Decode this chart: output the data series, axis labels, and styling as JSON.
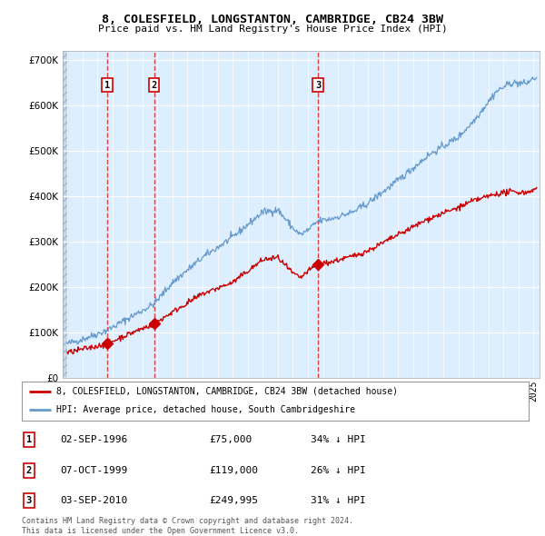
{
  "title_line1": "8, COLESFIELD, LONGSTANTON, CAMBRIDGE, CB24 3BW",
  "title_line2": "Price paid vs. HM Land Registry's House Price Index (HPI)",
  "background_color": "#ffffff",
  "plot_bg_color": "#ddeeff",
  "grid_color": "#ffffff",
  "red_line_color": "#cc0000",
  "blue_line_color": "#6699cc",
  "purchase_dates": [
    1996.67,
    1999.77,
    2010.67
  ],
  "purchase_prices": [
    75000,
    119000,
    249995
  ],
  "purchase_labels": [
    "1",
    "2",
    "3"
  ],
  "legend_red": "8, COLESFIELD, LONGSTANTON, CAMBRIDGE, CB24 3BW (detached house)",
  "legend_blue": "HPI: Average price, detached house, South Cambridgeshire",
  "table_data": [
    [
      "1",
      "02-SEP-1996",
      "£75,000",
      "34% ↓ HPI"
    ],
    [
      "2",
      "07-OCT-1999",
      "£119,000",
      "26% ↓ HPI"
    ],
    [
      "3",
      "03-SEP-2010",
      "£249,995",
      "31% ↓ HPI"
    ]
  ],
  "footer_text": "Contains HM Land Registry data © Crown copyright and database right 2024.\nThis data is licensed under the Open Government Licence v3.0.",
  "ylim": [
    0,
    720000
  ],
  "xlim_start": 1993.7,
  "xlim_end": 2025.4,
  "ytick_values": [
    0,
    100000,
    200000,
    300000,
    400000,
    500000,
    600000,
    700000
  ],
  "ytick_labels": [
    "£0",
    "£100K",
    "£200K",
    "£300K",
    "£400K",
    "£500K",
    "£600K",
    "£700K"
  ]
}
